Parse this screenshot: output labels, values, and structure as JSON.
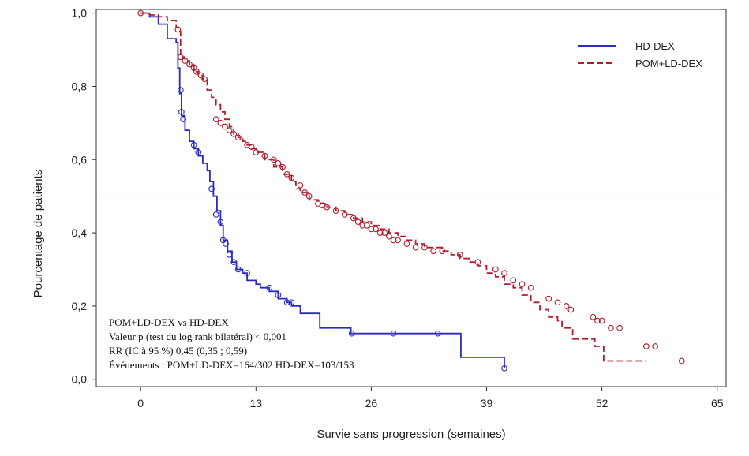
{
  "chart_data": {
    "type": "line",
    "title": "",
    "xlabel": "Survie sans progression (semaines)",
    "ylabel": "Pourcentage de patients",
    "xlim": [
      -5,
      66
    ],
    "ylim": [
      -0.02,
      1.01
    ],
    "xticks": [
      0,
      13,
      26,
      39,
      52,
      65
    ],
    "xtick_labels": [
      "0",
      "13",
      "26",
      "39",
      "52",
      "65"
    ],
    "yticks": [
      0.0,
      0.2,
      0.4,
      0.6,
      0.8,
      1.0
    ],
    "ytick_labels": [
      "0,0",
      "0,2",
      "0,4",
      "0,6",
      "0,8",
      "1,0"
    ],
    "reference_line_y": 0.5,
    "grid": false,
    "legend_position": "top-right",
    "series": [
      {
        "name": "HD-DEX",
        "color": "#2b2bc4",
        "style": "solid",
        "points": [
          [
            0,
            1.0
          ],
          [
            1,
            0.99
          ],
          [
            2,
            0.97
          ],
          [
            3,
            0.93
          ],
          [
            4.0,
            0.92
          ],
          [
            4.2,
            0.85
          ],
          [
            4.4,
            0.78
          ],
          [
            4.6,
            0.72
          ],
          [
            5.0,
            0.68
          ],
          [
            5.5,
            0.65
          ],
          [
            6.0,
            0.63
          ],
          [
            6.5,
            0.61
          ],
          [
            7.0,
            0.59
          ],
          [
            7.5,
            0.57
          ],
          [
            7.8,
            0.54
          ],
          [
            8.2,
            0.5
          ],
          [
            8.6,
            0.46
          ],
          [
            9.0,
            0.42
          ],
          [
            9.3,
            0.38
          ],
          [
            9.8,
            0.35
          ],
          [
            10.3,
            0.32
          ],
          [
            10.8,
            0.3
          ],
          [
            11.5,
            0.29
          ],
          [
            12.0,
            0.27
          ],
          [
            13.0,
            0.26
          ],
          [
            13.5,
            0.25
          ],
          [
            14.5,
            0.24
          ],
          [
            15.5,
            0.22
          ],
          [
            16.5,
            0.21
          ],
          [
            17.0,
            0.2
          ],
          [
            18.0,
            0.18
          ],
          [
            20.0,
            0.18
          ],
          [
            20.2,
            0.14
          ],
          [
            23.5,
            0.14
          ],
          [
            23.7,
            0.125
          ],
          [
            34.0,
            0.125
          ],
          [
            36.0,
            0.125
          ],
          [
            36.1,
            0.06
          ],
          [
            41.0,
            0.06
          ],
          [
            41.0,
            0.03
          ]
        ],
        "censored": [
          [
            4.5,
            0.79
          ],
          [
            4.6,
            0.73
          ],
          [
            4.8,
            0.71
          ],
          [
            6.0,
            0.64
          ],
          [
            6.5,
            0.62
          ],
          [
            8.0,
            0.52
          ],
          [
            8.5,
            0.45
          ],
          [
            9.0,
            0.43
          ],
          [
            9.3,
            0.38
          ],
          [
            9.6,
            0.37
          ],
          [
            10.0,
            0.34
          ],
          [
            10.5,
            0.32
          ],
          [
            11.0,
            0.3
          ],
          [
            12.0,
            0.29
          ],
          [
            14.5,
            0.25
          ],
          [
            15.5,
            0.23
          ],
          [
            16.5,
            0.21
          ],
          [
            17.0,
            0.21
          ],
          [
            23.8,
            0.125
          ],
          [
            28.5,
            0.125
          ],
          [
            33.5,
            0.125
          ],
          [
            41.0,
            0.03
          ]
        ]
      },
      {
        "name": "POM+LD-DEX",
        "color": "#b01c2e",
        "style": "dashed",
        "points": [
          [
            0,
            1.0
          ],
          [
            1,
            0.995
          ],
          [
            2,
            0.99
          ],
          [
            3,
            0.98
          ],
          [
            4,
            0.96
          ],
          [
            4.3,
            0.95
          ],
          [
            4.5,
            0.88
          ],
          [
            5,
            0.87
          ],
          [
            5.5,
            0.86
          ],
          [
            6,
            0.84
          ],
          [
            6.5,
            0.83
          ],
          [
            7,
            0.82
          ],
          [
            7.5,
            0.79
          ],
          [
            8,
            0.77
          ],
          [
            8.5,
            0.75
          ],
          [
            9,
            0.73
          ],
          [
            9.5,
            0.71
          ],
          [
            10,
            0.69
          ],
          [
            10.5,
            0.67
          ],
          [
            11,
            0.66
          ],
          [
            11.5,
            0.65
          ],
          [
            12,
            0.64
          ],
          [
            12.5,
            0.63
          ],
          [
            13,
            0.62
          ],
          [
            14,
            0.6
          ],
          [
            15,
            0.58
          ],
          [
            16,
            0.56
          ],
          [
            17,
            0.54
          ],
          [
            17.5,
            0.52
          ],
          [
            18,
            0.51
          ],
          [
            19,
            0.49
          ],
          [
            20,
            0.48
          ],
          [
            21,
            0.47
          ],
          [
            22,
            0.46
          ],
          [
            23,
            0.45
          ],
          [
            24,
            0.44
          ],
          [
            25,
            0.43
          ],
          [
            26,
            0.42
          ],
          [
            27,
            0.41
          ],
          [
            28,
            0.4
          ],
          [
            29,
            0.39
          ],
          [
            30,
            0.38
          ],
          [
            31,
            0.37
          ],
          [
            32,
            0.36
          ],
          [
            33,
            0.36
          ],
          [
            34,
            0.35
          ],
          [
            35,
            0.34
          ],
          [
            36,
            0.33
          ],
          [
            37,
            0.32
          ],
          [
            38,
            0.31
          ],
          [
            39,
            0.29
          ],
          [
            40,
            0.28
          ],
          [
            41,
            0.26
          ],
          [
            42,
            0.25
          ],
          [
            43,
            0.23
          ],
          [
            44,
            0.21
          ],
          [
            45,
            0.19
          ],
          [
            46,
            0.17
          ],
          [
            47,
            0.16
          ],
          [
            47.5,
            0.14
          ],
          [
            48.5,
            0.14
          ],
          [
            48.7,
            0.11
          ],
          [
            51,
            0.11
          ],
          [
            51.2,
            0.09
          ],
          [
            52,
            0.09
          ],
          [
            52.2,
            0.05
          ],
          [
            57,
            0.05
          ]
        ],
        "censored": [
          [
            0,
            1.0
          ],
          [
            4.2,
            0.955
          ],
          [
            4.5,
            0.88
          ],
          [
            5,
            0.87
          ],
          [
            5.5,
            0.86
          ],
          [
            6,
            0.85
          ],
          [
            6.3,
            0.84
          ],
          [
            6.8,
            0.83
          ],
          [
            7.2,
            0.82
          ],
          [
            8.5,
            0.71
          ],
          [
            9,
            0.7
          ],
          [
            9.5,
            0.69
          ],
          [
            10,
            0.68
          ],
          [
            10.5,
            0.67
          ],
          [
            11,
            0.66
          ],
          [
            12,
            0.64
          ],
          [
            12.5,
            0.635
          ],
          [
            13,
            0.62
          ],
          [
            14,
            0.61
          ],
          [
            15,
            0.6
          ],
          [
            15.5,
            0.59
          ],
          [
            16,
            0.58
          ],
          [
            16.5,
            0.56
          ],
          [
            17,
            0.55
          ],
          [
            18,
            0.53
          ],
          [
            18.5,
            0.51
          ],
          [
            19,
            0.5
          ],
          [
            20,
            0.48
          ],
          [
            20.5,
            0.475
          ],
          [
            21,
            0.47
          ],
          [
            22,
            0.46
          ],
          [
            23,
            0.45
          ],
          [
            24,
            0.44
          ],
          [
            24.5,
            0.43
          ],
          [
            25,
            0.42
          ],
          [
            25.5,
            0.42
          ],
          [
            26,
            0.41
          ],
          [
            26.5,
            0.41
          ],
          [
            27,
            0.4
          ],
          [
            27.5,
            0.4
          ],
          [
            28,
            0.39
          ],
          [
            28.5,
            0.38
          ],
          [
            29,
            0.38
          ],
          [
            30,
            0.37
          ],
          [
            31,
            0.36
          ],
          [
            32,
            0.36
          ],
          [
            33,
            0.35
          ],
          [
            34,
            0.35
          ],
          [
            36,
            0.34
          ],
          [
            38,
            0.32
          ],
          [
            40,
            0.3
          ],
          [
            41,
            0.29
          ],
          [
            42,
            0.27
          ],
          [
            43,
            0.26
          ],
          [
            44,
            0.25
          ],
          [
            46,
            0.22
          ],
          [
            47,
            0.21
          ],
          [
            48,
            0.2
          ],
          [
            48.5,
            0.19
          ],
          [
            51,
            0.17
          ],
          [
            51.5,
            0.16
          ],
          [
            52,
            0.16
          ],
          [
            53,
            0.14
          ],
          [
            54,
            0.14
          ],
          [
            57,
            0.09
          ],
          [
            58,
            0.09
          ],
          [
            61,
            0.05
          ]
        ]
      }
    ],
    "annotation": [
      "POM+LD-DEX vs HD-DEX",
      "Valeur p (test du log rank bilatéral) < 0,001",
      "RR (IC à 95 %) 0,45 (0,35 ; 0,59)",
      "Événements : POM+LD-DEX=164/302 HD-DEX=103/153"
    ]
  }
}
